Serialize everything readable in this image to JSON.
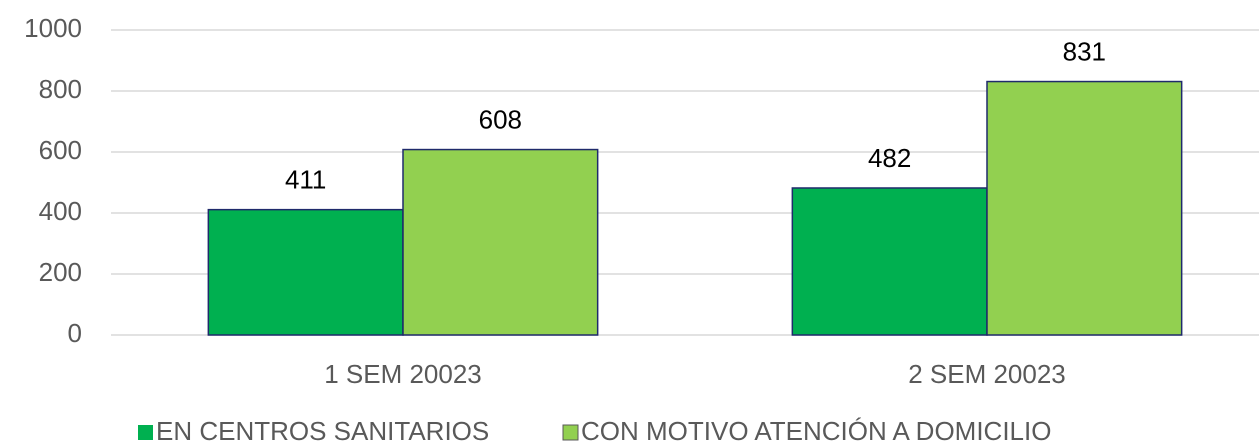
{
  "chart_data": {
    "type": "bar",
    "categories": [
      "1 SEM 20023",
      "2 SEM 20023"
    ],
    "series": [
      {
        "name": "EN CENTROS SANITARIOS",
        "color": "#00b050",
        "values": [
          411,
          482
        ]
      },
      {
        "name": "CON MOTIVO ATENCIÓN A DOMICILIO",
        "color": "#92d050",
        "values": [
          608,
          831
        ]
      }
    ],
    "ylim": [
      0,
      1000
    ],
    "yticks": [
      0,
      200,
      400,
      600,
      800,
      1000
    ],
    "grid": true,
    "legend": "bottom",
    "data_labels": true
  }
}
